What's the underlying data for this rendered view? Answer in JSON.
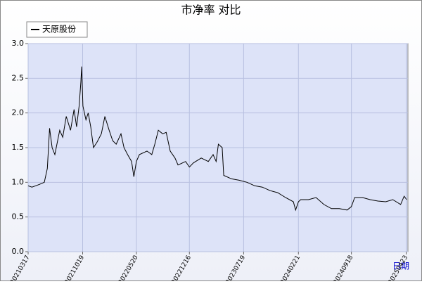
{
  "chart_data": {
    "type": "line",
    "title": "市净率 对比",
    "x_label": "日期",
    "x": [
      "20210317",
      "20210401",
      "20210501",
      "20210520",
      "20210601",
      "20210610",
      "20210620",
      "20210701",
      "20210720",
      "20210801",
      "20210815",
      "20210901",
      "20210915",
      "20210925",
      "20211005",
      "20211012",
      "20211015",
      "20211020",
      "20211101",
      "20211110",
      "20211120",
      "20211201",
      "20211215",
      "20220101",
      "20220115",
      "20220201",
      "20220215",
      "20220301",
      "20220320",
      "20220401",
      "20220415",
      "20220501",
      "20220510",
      "20220520",
      "20220601",
      "20220701",
      "20220720",
      "20220801",
      "20220815",
      "20220901",
      "20220915",
      "20221001",
      "20221020",
      "20221101",
      "20221201",
      "20221216",
      "20230101",
      "20230201",
      "20230301",
      "20230320",
      "20230401",
      "20230410",
      "20230425",
      "20230501",
      "20230601",
      "20230701",
      "20230801",
      "20230901",
      "20231001",
      "20231101",
      "20231201",
      "20240101",
      "20240201",
      "20240210",
      "20240221",
      "20240301",
      "20240401",
      "20240501",
      "20240601",
      "20240701",
      "20240801",
      "20240901",
      "20240918",
      "20241001",
      "20241101",
      "20241201",
      "20250101",
      "20250201",
      "20250301",
      "20250401",
      "20250415",
      "20250425"
    ],
    "series": [
      {
        "name": "天原股份",
        "color": "#000000",
        "values": [
          0.95,
          0.93,
          0.97,
          1.0,
          1.2,
          1.78,
          1.5,
          1.4,
          1.75,
          1.65,
          1.95,
          1.75,
          2.05,
          1.8,
          2.1,
          2.45,
          2.67,
          2.1,
          1.9,
          2.0,
          1.8,
          1.5,
          1.58,
          1.7,
          1.95,
          1.75,
          1.6,
          1.55,
          1.7,
          1.5,
          1.4,
          1.3,
          1.08,
          1.3,
          1.4,
          1.45,
          1.4,
          1.55,
          1.75,
          1.7,
          1.72,
          1.45,
          1.35,
          1.25,
          1.3,
          1.22,
          1.28,
          1.35,
          1.3,
          1.4,
          1.3,
          1.55,
          1.5,
          1.1,
          1.05,
          1.03,
          1.0,
          0.95,
          0.93,
          0.88,
          0.85,
          0.78,
          0.72,
          0.6,
          0.72,
          0.75,
          0.75,
          0.78,
          0.68,
          0.62,
          0.62,
          0.6,
          0.65,
          0.78,
          0.78,
          0.75,
          0.73,
          0.72,
          0.75,
          0.68,
          0.8,
          0.75
        ]
      }
    ],
    "xlim": [
      "20210317",
      "20250430"
    ],
    "xticks": [
      "20210317",
      "20211019",
      "20220520",
      "20221216",
      "20230719",
      "20240221",
      "20240918",
      "20250423"
    ],
    "ylim": [
      0,
      3
    ],
    "yticks": [
      {
        "value": 0,
        "label": "0.0"
      },
      0.5,
      {
        "value": 1,
        "label": "1.0"
      },
      1.5,
      {
        "value": 2,
        "label": "2.0"
      },
      2.5,
      {
        "value": 3,
        "label": "3.0"
      }
    ],
    "grid": true,
    "legend": "top-left"
  }
}
